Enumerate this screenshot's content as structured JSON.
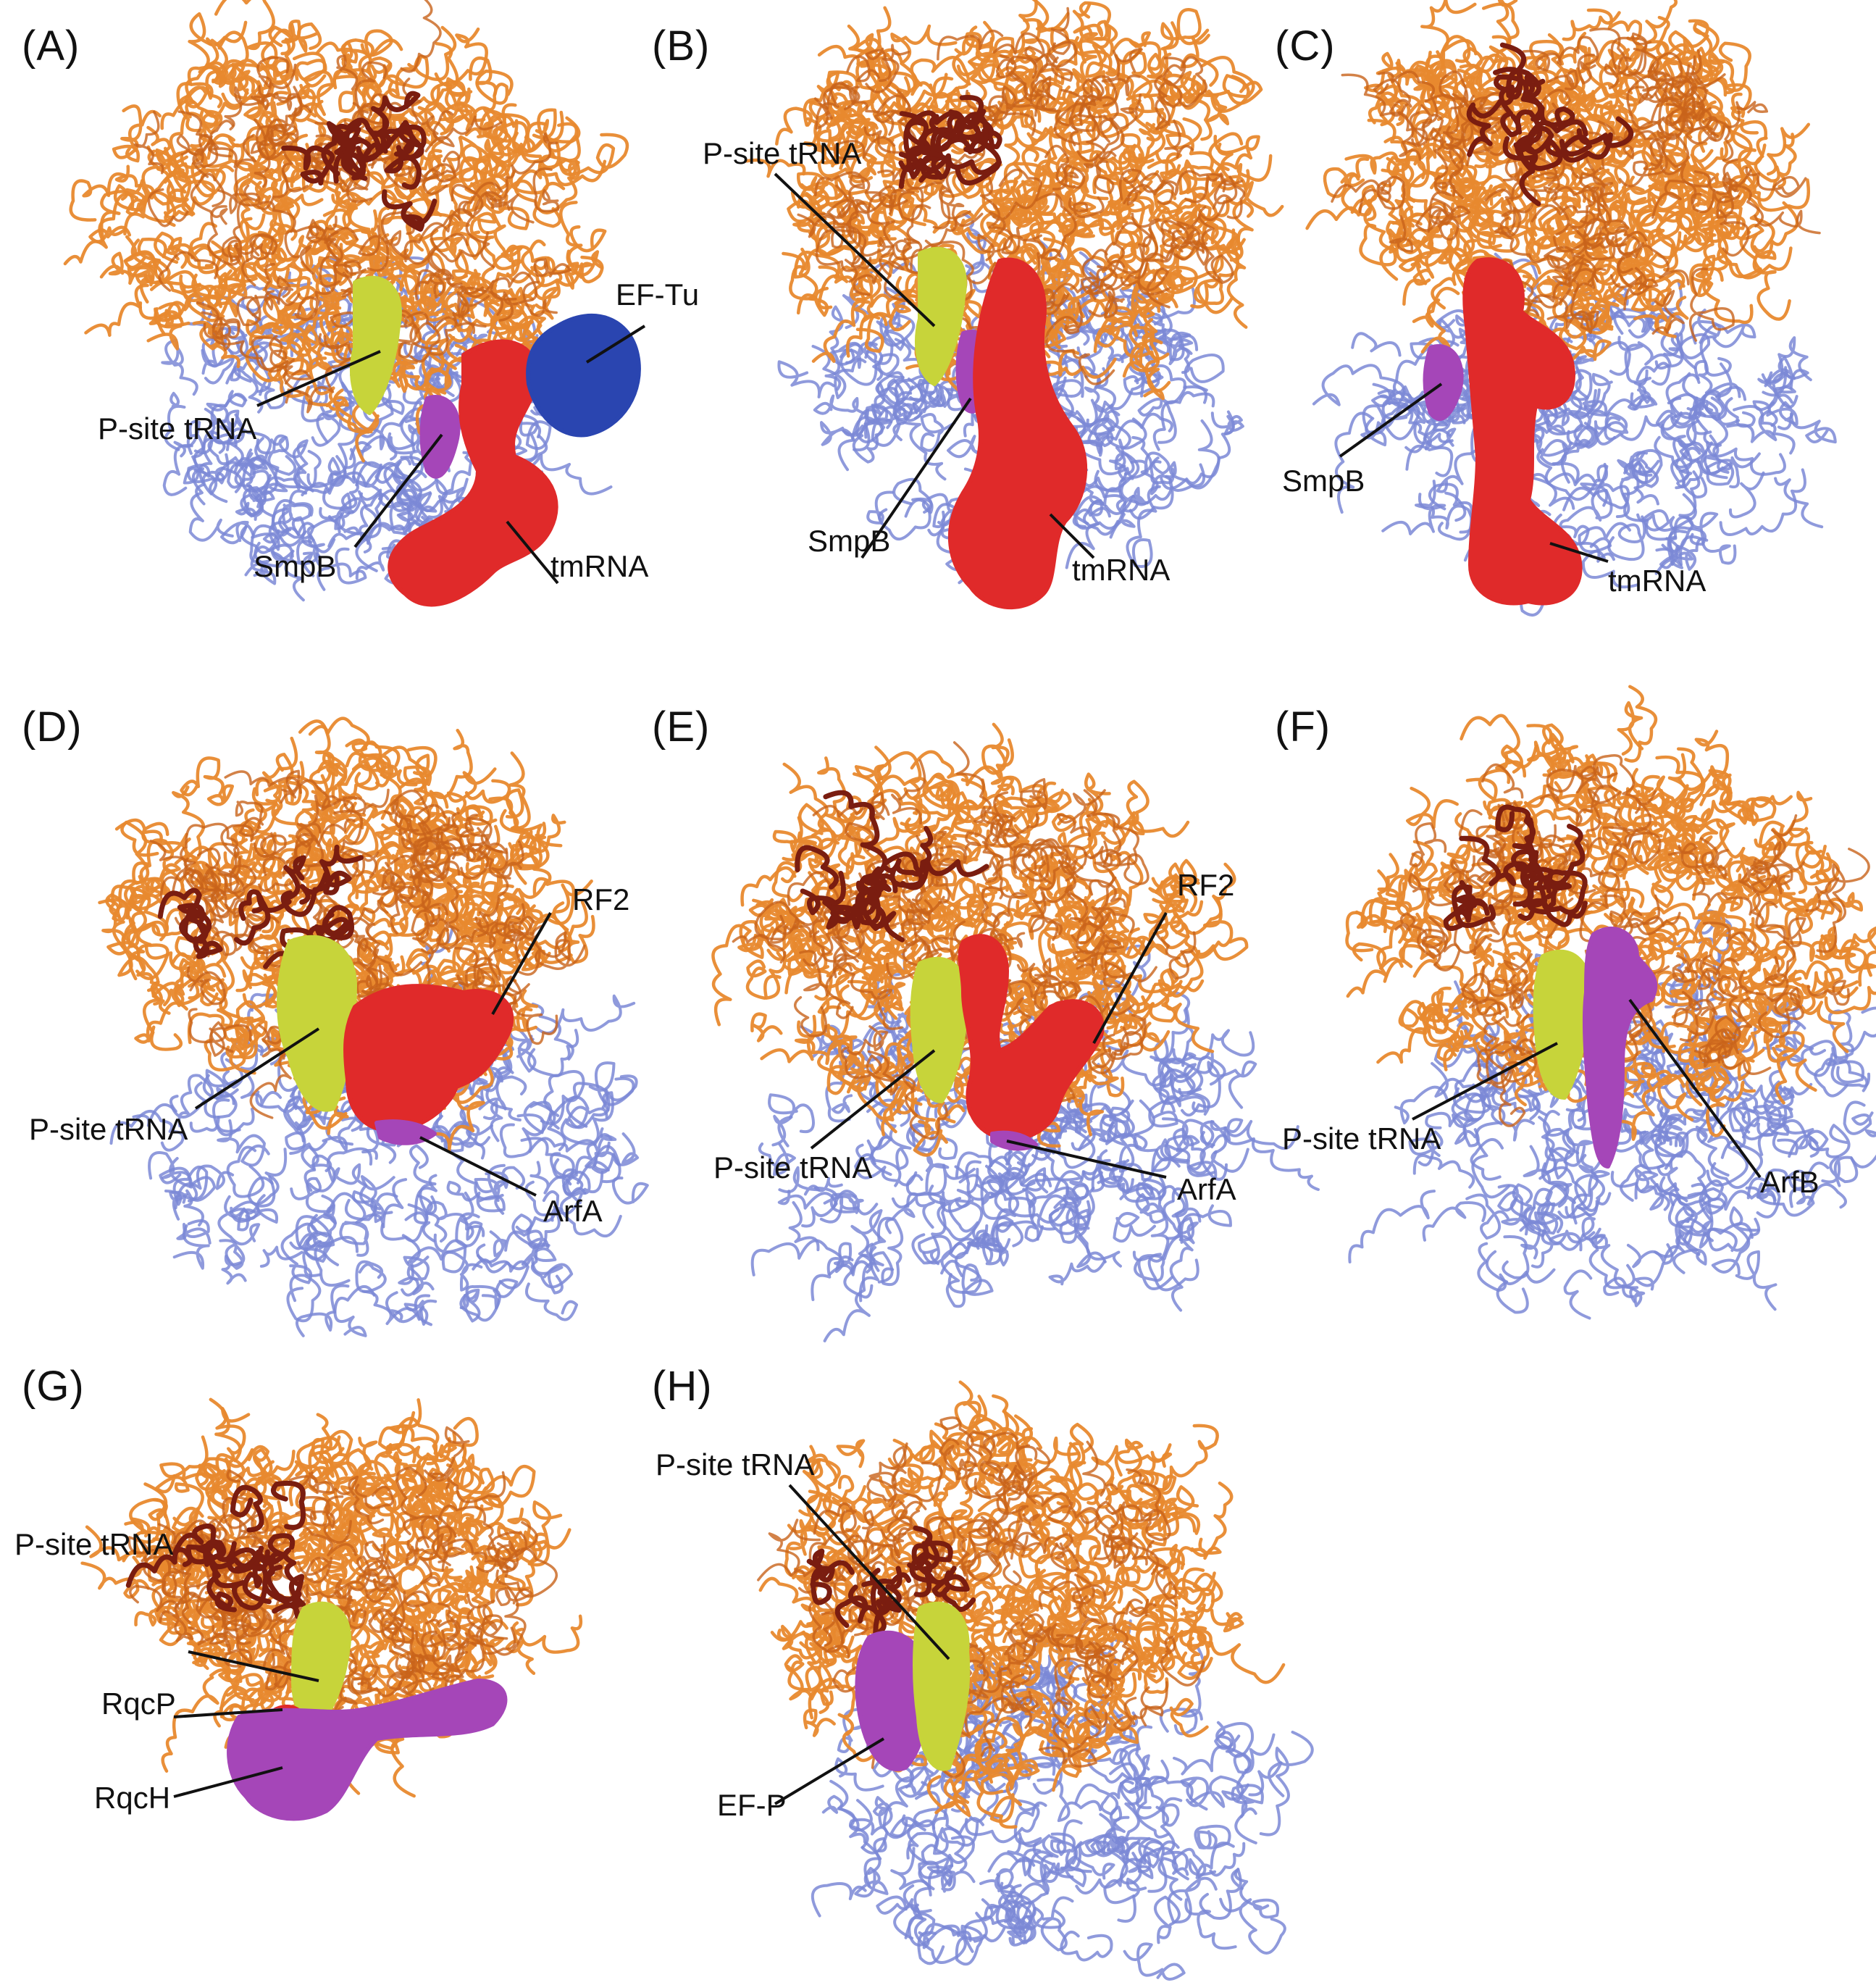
{
  "colors": {
    "large_subunit": "#e8892e",
    "large_subunit_dark": "#c8631a",
    "rrna_helix": "#7a1d10",
    "small_subunit": "#7b88d6",
    "p_site_trna": "#c7d43a",
    "red_factor": "#e02a2a",
    "purple_factor": "#a546b8",
    "ef_tu": "#2a45b0"
  },
  "panels": [
    {
      "id": "A",
      "label": "(A)",
      "callouts": {
        "ptrna": "P-site tRNA",
        "smpb": "SmpB",
        "tmrna": "tmRNA",
        "eftu": "EF-Tu"
      }
    },
    {
      "id": "B",
      "label": "(B)",
      "callouts": {
        "ptrna": "P-site tRNA",
        "smpb": "SmpB",
        "tmrna": "tmRNA"
      }
    },
    {
      "id": "C",
      "label": "(C)",
      "callouts": {
        "smpb": "SmpB",
        "tmrna": "tmRNA"
      }
    },
    {
      "id": "D",
      "label": "(D)",
      "callouts": {
        "ptrna": "P-site tRNA",
        "rf2": "RF2",
        "arfa": "ArfA"
      }
    },
    {
      "id": "E",
      "label": "(E)",
      "callouts": {
        "ptrna": "P-site tRNA",
        "rf2": "RF2",
        "arfa": "ArfA"
      }
    },
    {
      "id": "F",
      "label": "(F)",
      "callouts": {
        "ptrna": "P-site tRNA",
        "arfb": "ArfB"
      }
    },
    {
      "id": "G",
      "label": "(G)",
      "callouts": {
        "ptrna": "P-site tRNA",
        "rqcp": "RqcP",
        "rqch": "RqcH"
      }
    },
    {
      "id": "H",
      "label": "(H)",
      "callouts": {
        "ptrna": "P-site tRNA",
        "efp": "EF-P"
      }
    }
  ]
}
